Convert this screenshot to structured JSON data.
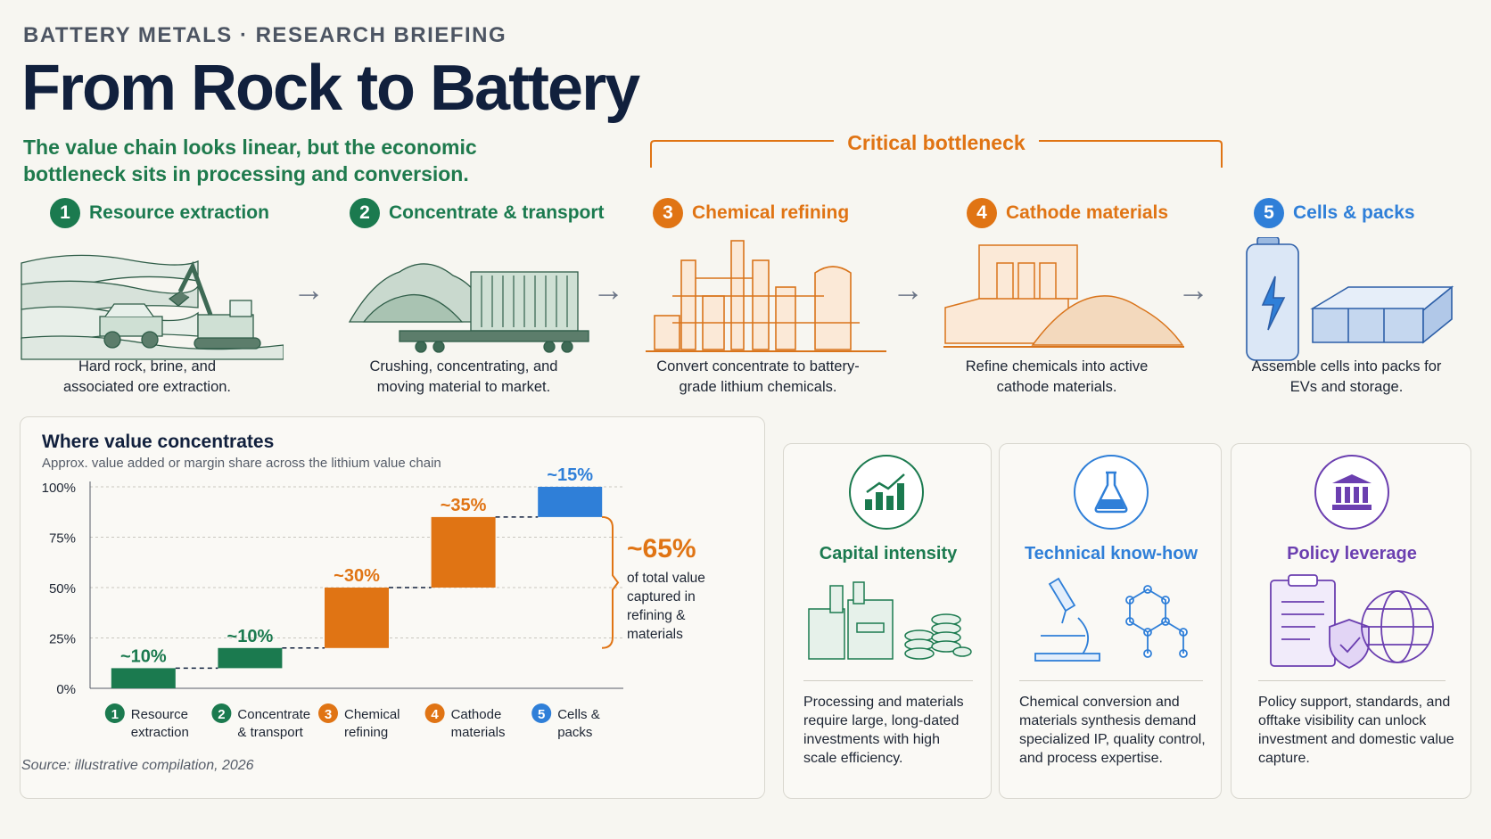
{
  "header": {
    "kicker": "BATTERY METALS  ·  RESEARCH BRIEFING",
    "title": "From Rock to Battery",
    "subtitle": "The value chain looks linear, but the economic bottleneck sits in processing and conversion.",
    "bottleneck_label": "Critical bottleneck"
  },
  "colors": {
    "green": "#1b7a4f",
    "orange": "#e07414",
    "blue": "#2f7fd8",
    "purple": "#6b3fb0",
    "navy": "#11203d"
  },
  "stages": [
    {
      "num": "1",
      "title": "Resource extraction",
      "desc": "Hard rock, brine, and associated ore extraction.",
      "color": "#1b7a4f",
      "icon": "excavator-mine-icon"
    },
    {
      "num": "2",
      "title": "Concentrate & transport",
      "desc": "Crushing, concentrating, and moving material to market.",
      "color": "#1b7a4f",
      "icon": "ore-container-icon"
    },
    {
      "num": "3",
      "title": "Chemical refining",
      "desc": "Convert concentrate to battery-grade lithium chemicals.",
      "color": "#e07414",
      "icon": "refinery-icon"
    },
    {
      "num": "4",
      "title": "Cathode materials",
      "desc": "Refine chemicals into active cathode materials.",
      "color": "#e07414",
      "icon": "cathode-plant-icon"
    },
    {
      "num": "5",
      "title": "Cells & packs",
      "desc": "Assemble cells into packs for EVs and storage.",
      "color": "#2f7fd8",
      "icon": "battery-pack-icon"
    }
  ],
  "chart_data": {
    "type": "bar",
    "subtype": "waterfall",
    "title": "Where value concentrates",
    "subtitle": "Approx. value added or margin share across the lithium value chain",
    "categories": [
      "Resource extraction",
      "Concentrate & transport",
      "Chemical refining",
      "Cathode materials",
      "Cells & packs"
    ],
    "category_lines": [
      [
        "Resource",
        "extraction"
      ],
      [
        "Concentrate",
        "& transport"
      ],
      [
        "Chemical",
        "refining"
      ],
      [
        "Cathode",
        "materials"
      ],
      [
        "Cells &",
        "packs"
      ]
    ],
    "category_numbers": [
      "1",
      "2",
      "3",
      "4",
      "5"
    ],
    "values": [
      10,
      10,
      30,
      35,
      15
    ],
    "data_labels": [
      "~10%",
      "~10%",
      "~30%",
      "~35%",
      "~15%"
    ],
    "colors": [
      "#1b7a4f",
      "#1b7a4f",
      "#e07414",
      "#e07414",
      "#2f7fd8"
    ],
    "yticks": [
      "0%",
      "25%",
      "50%",
      "75%",
      "100%"
    ],
    "ylim": [
      0,
      100
    ],
    "grid": true,
    "annotation": {
      "value": "~65%",
      "text": "of total value captured in refining & materials"
    }
  },
  "cards": [
    {
      "title": "Capital intensity",
      "desc": "Processing and materials require large, long-dated investments with high scale efficiency.",
      "color": "#1b7a4f",
      "icon": "growth-chart-icon",
      "illustration": "factory-coins-icon"
    },
    {
      "title": "Technical know-how",
      "desc": "Chemical conversion and materials synthesis demand specialized IP, quality control, and process expertise.",
      "color": "#2f7fd8",
      "icon": "flask-icon",
      "illustration": "microscope-molecule-icon"
    },
    {
      "title": "Policy leverage",
      "desc": "Policy support, standards, and offtake visibility can unlock investment and domestic value capture.",
      "color": "#6b3fb0",
      "icon": "government-building-icon",
      "illustration": "policy-shield-globe-icon"
    }
  ],
  "footer": {
    "source": "Source: illustrative compilation, 2026"
  }
}
